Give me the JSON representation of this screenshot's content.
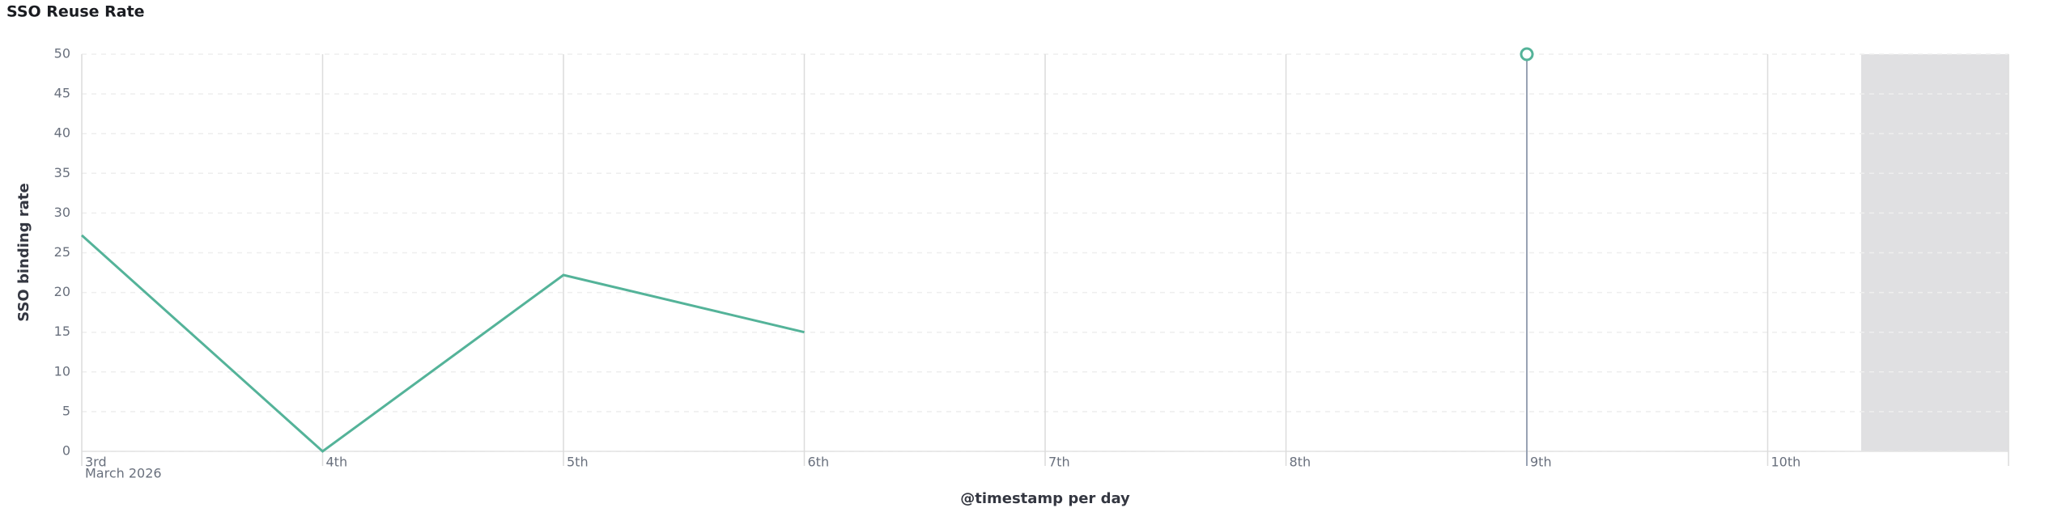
{
  "chart_data": {
    "type": "line",
    "title": "SSO Reuse Rate",
    "y_label": "SSO binding rate",
    "x_label": "@timestamp per day",
    "x_sublabel": "March 2026",
    "categories": [
      "3rd",
      "4th",
      "5th",
      "6th",
      "7th",
      "8th",
      "9th",
      "10th"
    ],
    "series": [
      {
        "name": "SSO binding rate",
        "color": "#54b399",
        "values": [
          27.2,
          0,
          22.2,
          15,
          null,
          null,
          50,
          null
        ]
      }
    ],
    "ylim": [
      0,
      50
    ],
    "yticks": [
      0,
      5,
      10,
      15,
      20,
      25,
      30,
      35,
      40,
      45,
      50
    ],
    "grid": true
  }
}
